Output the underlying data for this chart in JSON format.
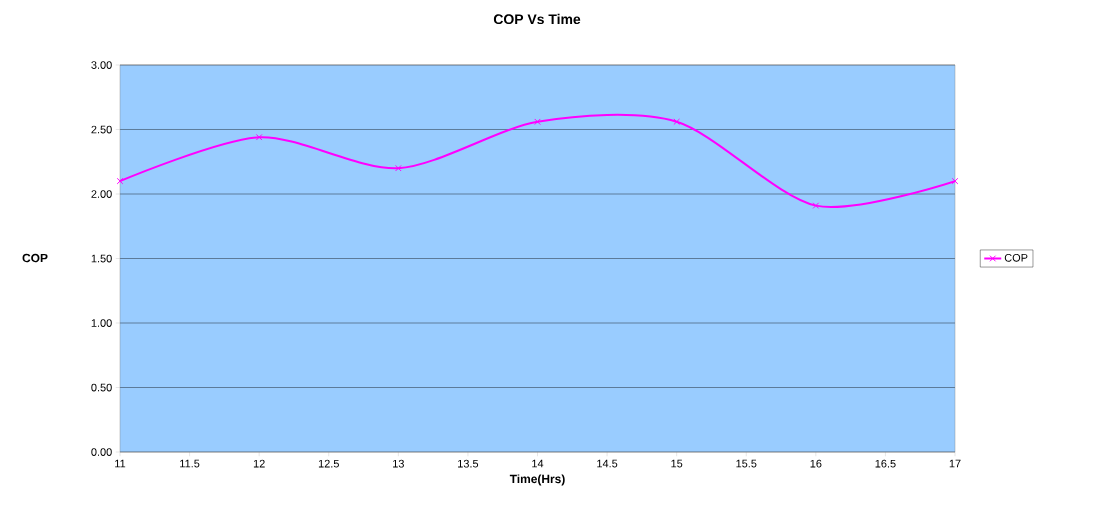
{
  "chart_data": {
    "type": "line",
    "title": "COP Vs Time",
    "xlabel": "Time(Hrs)",
    "ylabel": "COP",
    "x": [
      11,
      12,
      13,
      14,
      15,
      16,
      17
    ],
    "series": [
      {
        "name": "COP",
        "color": "#ff00ff",
        "values": [
          2.1,
          2.44,
          2.2,
          2.56,
          2.56,
          1.91,
          2.1
        ]
      }
    ],
    "xlim": [
      11,
      17
    ],
    "xticks": [
      11,
      11.5,
      12,
      12.5,
      13,
      13.5,
      14,
      14.5,
      15,
      15.5,
      16,
      16.5,
      17
    ],
    "ylim": [
      0,
      3
    ],
    "yticks": [
      {
        "value": 0,
        "label": "0.00"
      },
      {
        "value": 0.5,
        "label": "0.50"
      },
      {
        "value": 1,
        "label": "1.00"
      },
      {
        "value": 1.5,
        "label": "1.50"
      },
      {
        "value": 2,
        "label": "2.00"
      },
      {
        "value": 2.5,
        "label": "2.50"
      },
      {
        "value": 3,
        "label": "3.00"
      }
    ],
    "grid": "y",
    "legend": "right",
    "marker": "cross",
    "line_style": "solid"
  }
}
